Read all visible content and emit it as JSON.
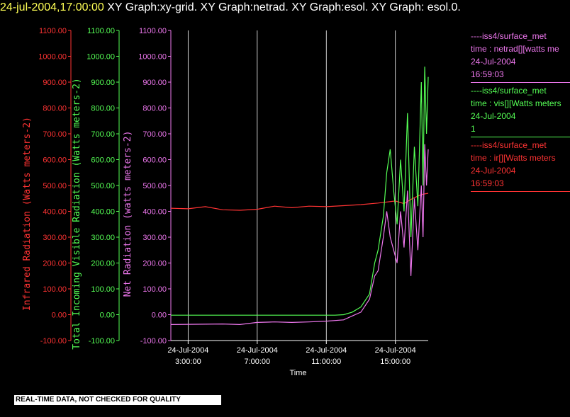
{
  "header": {
    "timestamp": "24-jul-2004,17:00:00",
    "title": "  XY Graph:xy-grid.  XY Graph:netrad.  XY Graph:esol.  XY Graph: esol.0."
  },
  "colors": {
    "ir": "#ff3333",
    "vis": "#55ff55",
    "net": "#ee77ee",
    "grid": "#ffffff"
  },
  "legend": [
    {
      "source": "----iss4/surface_met",
      "desc": "time : netrad[][watts me",
      "date": "24-Jul-2004",
      "extra": "16:59:03",
      "color": "#ee77ee"
    },
    {
      "source": "----iss4/surface_met",
      "desc": "time : vis[][Watts meters",
      "date": "24-Jul-2004",
      "extra": "1",
      "color": "#55ff55"
    },
    {
      "source": "----iss4/surface_met",
      "desc": "time : ir[][Watts meters",
      "date": "24-Jul-2004",
      "extra": "16:59:03",
      "color": "#ff3333"
    }
  ],
  "footer": "REAL-TIME DATA, NOT CHECKED FOR QUALITY",
  "chart_data": {
    "type": "line",
    "xlabel": "Time",
    "x_ticks": [
      {
        "date": "24-Jul-2004",
        "time": "3:00:00",
        "hour": 3
      },
      {
        "date": "24-Jul-2004",
        "time": "7:00:00",
        "hour": 7
      },
      {
        "date": "24-Jul-2004",
        "time": "11:00:00",
        "hour": 11
      },
      {
        "date": "24-Jul-2004",
        "time": "15:00:00",
        "hour": 15
      }
    ],
    "xlim_hours": [
      2.0,
      16.9
    ],
    "ylim": [
      -100,
      1100
    ],
    "y_ticks": [
      "-100.00",
      "0.00",
      "100.00",
      "200.00",
      "300.00",
      "400.00",
      "500.00",
      "600.00",
      "700.00",
      "800.00",
      "900.00",
      "1000.00",
      "1100.00"
    ],
    "axes": [
      {
        "label": "Infrared Radiation (Watts meters-2)",
        "color": "#ff3333"
      },
      {
        "label": "Total Incoming Visible Radiation (Watts meters-2)",
        "color": "#55ff55"
      },
      {
        "label": "Net Radiation (watts meters-2)",
        "color": "#ee77ee"
      }
    ],
    "series": [
      {
        "name": "ir",
        "color": "#ff3333",
        "points": [
          [
            2.0,
            412
          ],
          [
            3.0,
            410
          ],
          [
            4.0,
            418
          ],
          [
            5.0,
            406
          ],
          [
            6.0,
            404
          ],
          [
            7.0,
            408
          ],
          [
            8.0,
            420
          ],
          [
            9.0,
            414
          ],
          [
            10.0,
            420
          ],
          [
            11.0,
            418
          ],
          [
            12.0,
            422
          ],
          [
            13.0,
            426
          ],
          [
            14.0,
            432
          ],
          [
            15.0,
            440
          ],
          [
            15.5,
            430
          ],
          [
            16.0,
            450
          ],
          [
            16.5,
            465
          ],
          [
            16.9,
            470
          ]
        ]
      },
      {
        "name": "vis",
        "color": "#55ff55",
        "points": [
          [
            2.0,
            -2
          ],
          [
            11.5,
            -2
          ],
          [
            12.0,
            0
          ],
          [
            12.5,
            10
          ],
          [
            13.0,
            30
          ],
          [
            13.5,
            80
          ],
          [
            13.8,
            200
          ],
          [
            14.0,
            250
          ],
          [
            14.3,
            380
          ],
          [
            14.5,
            550
          ],
          [
            14.7,
            640
          ],
          [
            14.9,
            480
          ],
          [
            15.1,
            350
          ],
          [
            15.3,
            600
          ],
          [
            15.5,
            400
          ],
          [
            15.7,
            780
          ],
          [
            15.9,
            300
          ],
          [
            16.1,
            650
          ],
          [
            16.3,
            420
          ],
          [
            16.5,
            900
          ],
          [
            16.6,
            500
          ],
          [
            16.7,
            960
          ],
          [
            16.8,
            700
          ],
          [
            16.9,
            920
          ]
        ]
      },
      {
        "name": "net",
        "color": "#ee77ee",
        "points": [
          [
            2.0,
            -38
          ],
          [
            5.0,
            -36
          ],
          [
            6.0,
            -38
          ],
          [
            7.0,
            -30
          ],
          [
            8.0,
            -28
          ],
          [
            9.0,
            -30
          ],
          [
            10.0,
            -28
          ],
          [
            11.0,
            -25
          ],
          [
            12.0,
            -20
          ],
          [
            12.5,
            -5
          ],
          [
            13.0,
            10
          ],
          [
            13.5,
            60
          ],
          [
            13.8,
            150
          ],
          [
            14.0,
            170
          ],
          [
            14.3,
            300
          ],
          [
            14.5,
            400
          ],
          [
            14.7,
            300
          ],
          [
            14.9,
            250
          ],
          [
            15.1,
            200
          ],
          [
            15.3,
            400
          ],
          [
            15.5,
            260
          ],
          [
            15.7,
            480
          ],
          [
            15.9,
            150
          ],
          [
            16.1,
            450
          ],
          [
            16.3,
            250
          ],
          [
            16.5,
            500
          ],
          [
            16.6,
            300
          ],
          [
            16.7,
            660
          ],
          [
            16.8,
            500
          ],
          [
            16.9,
            640
          ]
        ]
      }
    ]
  }
}
